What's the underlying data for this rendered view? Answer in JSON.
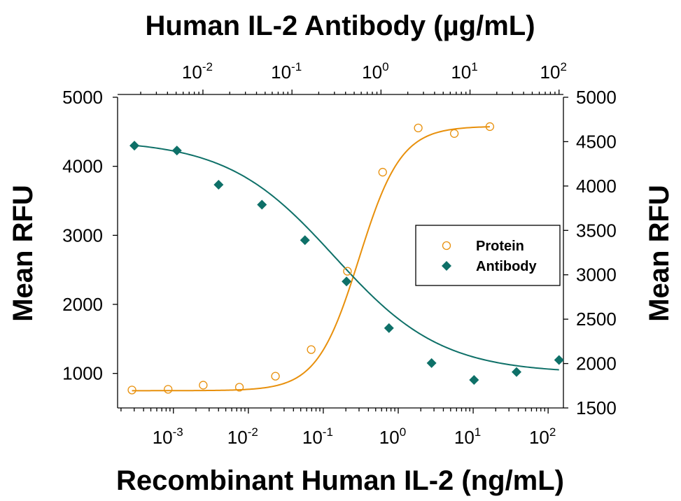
{
  "chart_data": {
    "type": "scatter",
    "title_top": "Human IL-2 Antibody (µg/mL)",
    "xlabel": "Recombinant Human IL-2 (ng/mL)",
    "ylabel_left": "Mean RFU",
    "ylabel_right": "Mean RFU",
    "x_bottom": {
      "scale": "log",
      "range": [
        0.00018,
        160
      ],
      "ticks": [
        {
          "value": 0.001,
          "base": "10",
          "exp": "-3"
        },
        {
          "value": 0.01,
          "base": "10",
          "exp": "-2"
        },
        {
          "value": 0.1,
          "base": "10",
          "exp": "-1"
        },
        {
          "value": 1,
          "base": "10",
          "exp": "0"
        },
        {
          "value": 10,
          "base": "10",
          "exp": "1"
        },
        {
          "value": 100,
          "base": "10",
          "exp": "2"
        }
      ]
    },
    "x_top": {
      "scale": "log",
      "range": [
        0.0011,
        112
      ],
      "ticks": [
        {
          "value": 0.01,
          "base": "10",
          "exp": "-2"
        },
        {
          "value": 0.1,
          "base": "10",
          "exp": "-1"
        },
        {
          "value": 1,
          "base": "10",
          "exp": "0"
        },
        {
          "value": 10,
          "base": "10",
          "exp": "1"
        },
        {
          "value": 100,
          "base": "10",
          "exp": "2"
        }
      ]
    },
    "y_left": {
      "range": [
        500,
        5000
      ],
      "ticks": [
        1000,
        2000,
        3000,
        4000,
        5000
      ]
    },
    "y_right": {
      "range": [
        1500,
        5000
      ],
      "ticks": [
        1500,
        2000,
        2500,
        3000,
        3500,
        4000,
        4500,
        5000
      ]
    },
    "grid": false,
    "legend": {
      "position": "center-right",
      "entries": [
        {
          "name": "Protein",
          "marker": "open-circle",
          "color": "#E8900C"
        },
        {
          "name": "Antibody",
          "marker": "filled-diamond",
          "color": "#0E7068"
        }
      ]
    },
    "series": [
      {
        "name": "Protein",
        "x_axis": "bottom",
        "y_axis": "left",
        "color": "#E8900C",
        "marker": "open-circle",
        "x": [
          0.00028,
          0.00085,
          0.0025,
          0.0076,
          0.023,
          0.069,
          0.21,
          0.62,
          1.85,
          5.6,
          16.7
        ],
        "y": [
          760,
          770,
          830,
          800,
          960,
          1345,
          2480,
          3915,
          4555,
          4475,
          4575
        ],
        "fit": {
          "model": "4PL",
          "bottom": 750,
          "top": 4580,
          "ec50": 0.3,
          "hill": 1.55
        }
      },
      {
        "name": "Antibody",
        "x_axis": "top",
        "y_axis": "right",
        "color": "#0E7068",
        "marker": "filled-diamond",
        "x": [
          0.0017,
          0.0051,
          0.015,
          0.046,
          0.14,
          0.41,
          1.23,
          3.7,
          11.1,
          33.3,
          100
        ],
        "y": [
          4455,
          4400,
          4015,
          3790,
          3390,
          2925,
          2400,
          2005,
          1815,
          1905,
          2040
        ],
        "fit": {
          "model": "4PL",
          "bottom": 1890,
          "top": 4520,
          "ec50": 0.3,
          "hill": -0.72
        }
      }
    ]
  }
}
